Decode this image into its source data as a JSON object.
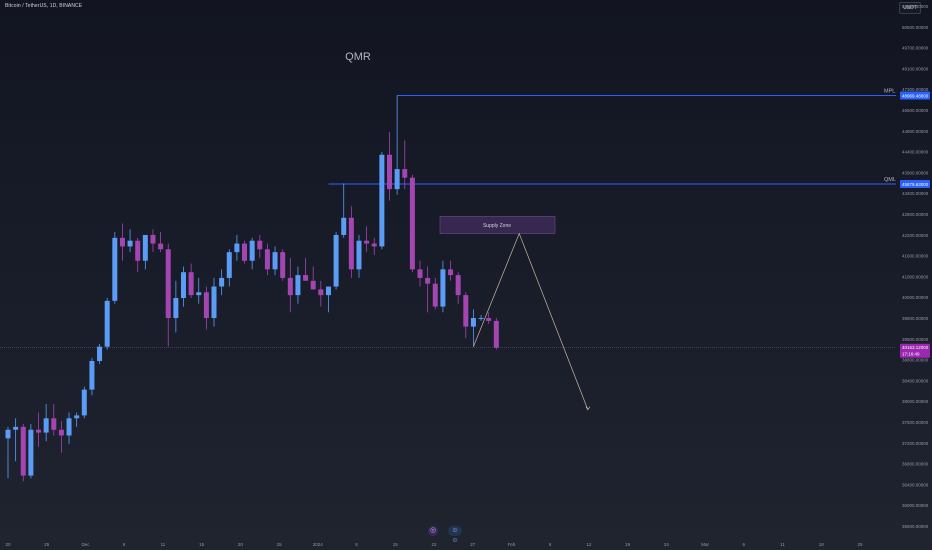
{
  "header": {
    "symbol_title": "Bitcoin / TetherUS, 1D, BINANCE",
    "currency": "USDT"
  },
  "bottom_bar": {
    "icons": [
      "indicator-icon",
      "emoji-icon"
    ]
  },
  "chart_data": {
    "type": "candlestick",
    "title": "QMR",
    "x_tick_labels": [
      "20",
      "25",
      "Dec",
      "6",
      "11",
      "15",
      "20",
      "25",
      "2024",
      "8",
      "15",
      "22",
      "27",
      "Feb",
      "6",
      "12",
      "19",
      "24",
      "Mar",
      "6",
      "11",
      "18",
      "25"
    ],
    "y_tick_labels": [
      "51500.00000",
      "50500.00000",
      "49700.00000",
      "48100.00000",
      "47300.00000",
      "46500.00000",
      "44900.00000",
      "44400.00000",
      "43900.00000",
      "43400.00000",
      "42800.00000",
      "42200.00000",
      "41600.00000",
      "41000.00000",
      "40000.00000",
      "39600.00000",
      "39500.00000",
      "38800.00000",
      "38400.00000",
      "38000.00000",
      "37500.00000",
      "37200.00000",
      "36800.00000",
      "36400.00000",
      "36000.00000",
      "35600.00000"
    ],
    "ylim": [
      35300,
      52200
    ],
    "levels": [
      {
        "name": "MPL",
        "price": 48969.48,
        "label": "48969.48000"
      },
      {
        "name": "QML",
        "price": 45879.63,
        "label": "45879.63000"
      }
    ],
    "current_price": {
      "price": 40163.12,
      "label": "40163.12000",
      "countdown": "17:16:49"
    },
    "supply_zone": {
      "label": "Supply Zone",
      "low": 44300,
      "high": 44600
    },
    "projection": [
      {
        "day": 61,
        "price": 40200
      },
      {
        "day": 67,
        "price": 44400
      },
      {
        "day": 76,
        "price": 38000
      }
    ],
    "colors": {
      "up": "#5b9cf6",
      "down": "#a445b2",
      "level": "#2962ff",
      "zone_fill": "#3c2a55",
      "zone_border": "#6a4a8c",
      "price_label": "#9c27b0",
      "projection": "#c8b8a0"
    },
    "ohlc": [
      {
        "o": 37000,
        "h": 37400,
        "l": 35600,
        "c": 37300
      },
      {
        "o": 37300,
        "h": 37700,
        "l": 36200,
        "c": 37400
      },
      {
        "o": 37400,
        "h": 37500,
        "l": 35500,
        "c": 35700
      },
      {
        "o": 35700,
        "h": 37500,
        "l": 35600,
        "c": 37300
      },
      {
        "o": 37300,
        "h": 37900,
        "l": 36700,
        "c": 37200
      },
      {
        "o": 37200,
        "h": 38200,
        "l": 36900,
        "c": 37700
      },
      {
        "o": 37700,
        "h": 38200,
        "l": 37100,
        "c": 37300
      },
      {
        "o": 37300,
        "h": 37600,
        "l": 36500,
        "c": 37100
      },
      {
        "o": 37100,
        "h": 37900,
        "l": 36800,
        "c": 37700
      },
      {
        "o": 37700,
        "h": 37900,
        "l": 37400,
        "c": 37800
      },
      {
        "o": 37800,
        "h": 38800,
        "l": 37700,
        "c": 38700
      },
      {
        "o": 38700,
        "h": 39800,
        "l": 38500,
        "c": 39700
      },
      {
        "o": 39700,
        "h": 40300,
        "l": 39600,
        "c": 40200
      },
      {
        "o": 40200,
        "h": 41900,
        "l": 40100,
        "c": 41800
      },
      {
        "o": 41800,
        "h": 44200,
        "l": 41700,
        "c": 44000
      },
      {
        "o": 44000,
        "h": 44500,
        "l": 43200,
        "c": 43700
      },
      {
        "o": 43700,
        "h": 44300,
        "l": 43500,
        "c": 43900
      },
      {
        "o": 43900,
        "h": 44000,
        "l": 42800,
        "c": 43200
      },
      {
        "o": 43200,
        "h": 44100,
        "l": 42900,
        "c": 44100
      },
      {
        "o": 44100,
        "h": 44300,
        "l": 43500,
        "c": 43800
      },
      {
        "o": 43800,
        "h": 44200,
        "l": 43500,
        "c": 43600
      },
      {
        "o": 43600,
        "h": 43800,
        "l": 40200,
        "c": 41200
      },
      {
        "o": 41200,
        "h": 42500,
        "l": 40700,
        "c": 41900
      },
      {
        "o": 41900,
        "h": 43000,
        "l": 41600,
        "c": 42800
      },
      {
        "o": 42800,
        "h": 43100,
        "l": 41900,
        "c": 42000
      },
      {
        "o": 42000,
        "h": 42600,
        "l": 41700,
        "c": 42100
      },
      {
        "o": 42100,
        "h": 42300,
        "l": 40800,
        "c": 41200
      },
      {
        "o": 41200,
        "h": 42600,
        "l": 40900,
        "c": 42300
      },
      {
        "o": 42300,
        "h": 42900,
        "l": 42000,
        "c": 42600
      },
      {
        "o": 42600,
        "h": 43600,
        "l": 42300,
        "c": 43500
      },
      {
        "o": 43500,
        "h": 44100,
        "l": 43200,
        "c": 43800
      },
      {
        "o": 43800,
        "h": 43900,
        "l": 43100,
        "c": 43200
      },
      {
        "o": 43200,
        "h": 44000,
        "l": 42900,
        "c": 43900
      },
      {
        "o": 43900,
        "h": 44100,
        "l": 43300,
        "c": 43600
      },
      {
        "o": 43600,
        "h": 43800,
        "l": 42700,
        "c": 42900
      },
      {
        "o": 42900,
        "h": 43700,
        "l": 42700,
        "c": 43500
      },
      {
        "o": 43500,
        "h": 43600,
        "l": 42500,
        "c": 42600
      },
      {
        "o": 42600,
        "h": 43300,
        "l": 41400,
        "c": 42000
      },
      {
        "o": 42000,
        "h": 43000,
        "l": 41700,
        "c": 42700
      },
      {
        "o": 42700,
        "h": 43300,
        "l": 42500,
        "c": 42500
      },
      {
        "o": 42500,
        "h": 43000,
        "l": 42200,
        "c": 42200
      },
      {
        "o": 42200,
        "h": 42500,
        "l": 41600,
        "c": 42000
      },
      {
        "o": 42000,
        "h": 42200,
        "l": 41400,
        "c": 42300
      },
      {
        "o": 42300,
        "h": 44200,
        "l": 42200,
        "c": 44100
      },
      {
        "o": 44100,
        "h": 45900,
        "l": 44000,
        "c": 44700
      },
      {
        "o": 44700,
        "h": 45100,
        "l": 42600,
        "c": 42900
      },
      {
        "o": 42900,
        "h": 44100,
        "l": 42600,
        "c": 43900
      },
      {
        "o": 43900,
        "h": 44400,
        "l": 43500,
        "c": 43800
      },
      {
        "o": 43800,
        "h": 44000,
        "l": 43400,
        "c": 43700
      },
      {
        "o": 43700,
        "h": 47000,
        "l": 43600,
        "c": 46900
      },
      {
        "o": 46900,
        "h": 47700,
        "l": 45300,
        "c": 45700
      },
      {
        "o": 45700,
        "h": 48969,
        "l": 45500,
        "c": 46400
      },
      {
        "o": 46400,
        "h": 47400,
        "l": 45700,
        "c": 46100
      },
      {
        "o": 46100,
        "h": 46200,
        "l": 42800,
        "c": 42900
      },
      {
        "o": 42900,
        "h": 43200,
        "l": 42300,
        "c": 42600
      },
      {
        "o": 42600,
        "h": 43000,
        "l": 41400,
        "c": 42400
      },
      {
        "o": 42400,
        "h": 42600,
        "l": 41500,
        "c": 41600
      },
      {
        "o": 41600,
        "h": 43200,
        "l": 41400,
        "c": 42900
      },
      {
        "o": 42900,
        "h": 43200,
        "l": 42500,
        "c": 42700
      },
      {
        "o": 42700,
        "h": 42800,
        "l": 41700,
        "c": 42000
      },
      {
        "o": 42000,
        "h": 42100,
        "l": 40500,
        "c": 40900
      },
      {
        "o": 40900,
        "h": 41500,
        "l": 40200,
        "c": 41200
      },
      {
        "o": 41200,
        "h": 41300,
        "l": 41100,
        "c": 41200
      },
      {
        "o": 41200,
        "h": 41400,
        "l": 41000,
        "c": 41100
      },
      {
        "o": 41100,
        "h": 41200,
        "l": 40100,
        "c": 40163
      }
    ]
  }
}
